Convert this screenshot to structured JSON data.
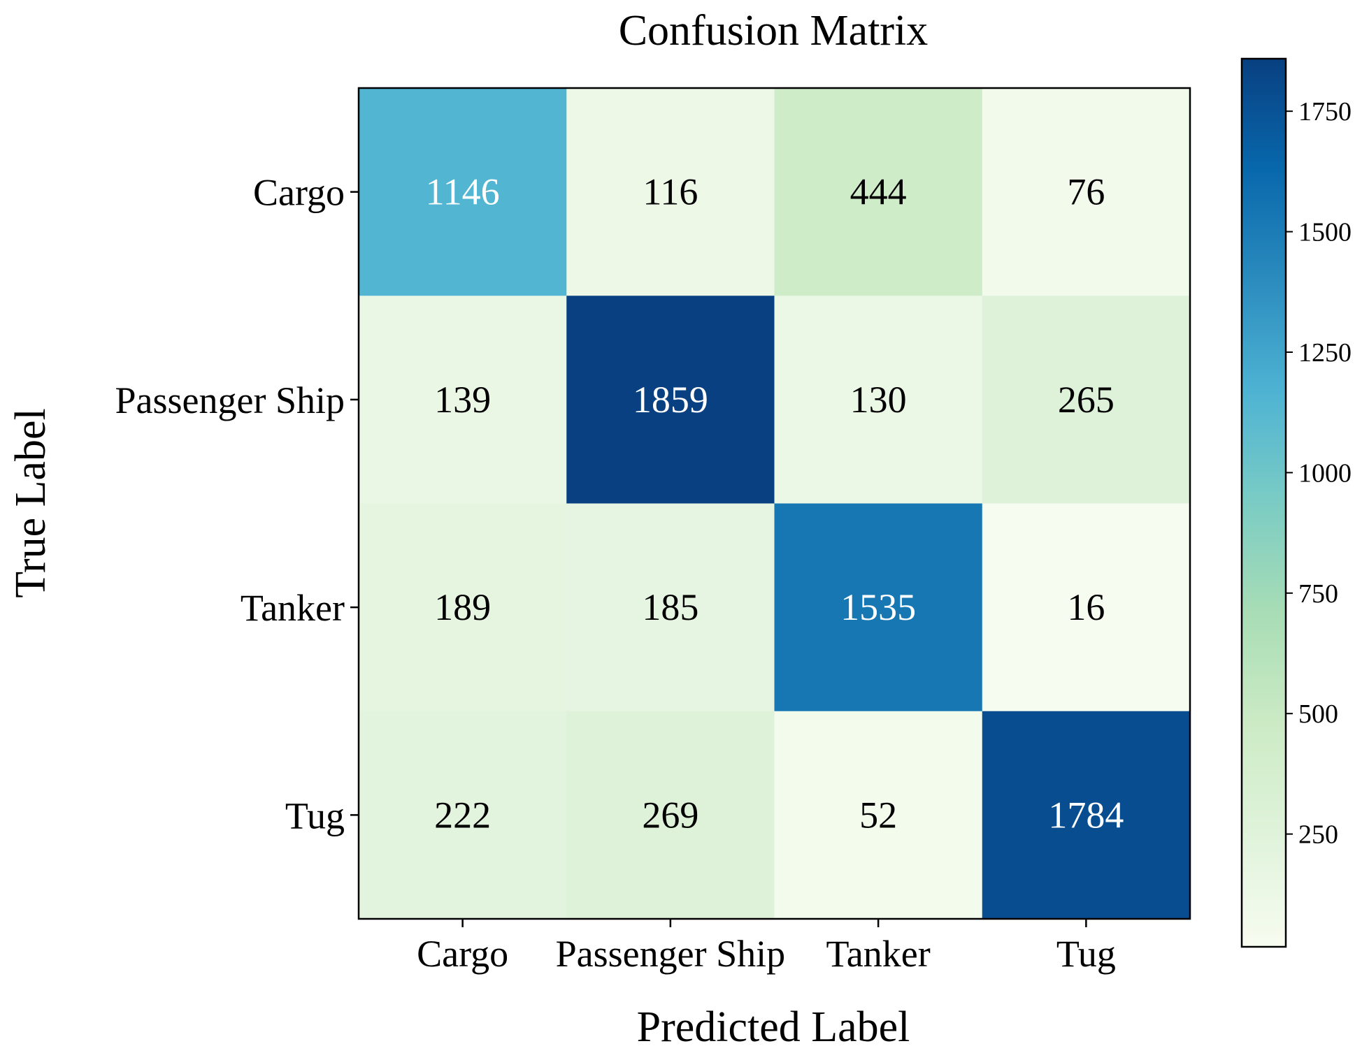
{
  "chart_data": {
    "type": "heatmap",
    "title": "Confusion Matrix",
    "xlabel": "Predicted Label",
    "ylabel": "True Label",
    "x_categories": [
      "Cargo",
      "Passenger Ship",
      "Tanker",
      "Tug"
    ],
    "y_categories": [
      "Cargo",
      "Passenger Ship",
      "Tanker",
      "Tug"
    ],
    "values": [
      [
        1146,
        116,
        444,
        76
      ],
      [
        139,
        1859,
        130,
        265
      ],
      [
        189,
        185,
        1535,
        16
      ],
      [
        222,
        269,
        52,
        1784
      ]
    ],
    "colormap": "GnBu",
    "color_range": [
      16,
      1859
    ],
    "colorbar_ticks": [
      250,
      500,
      750,
      1000,
      1250,
      1500,
      1750
    ],
    "colorbar_tick_labels": [
      "250",
      "500",
      "750",
      "1000",
      "1250",
      "1500",
      "1750"
    ],
    "colors": {
      "low": "#f7fcf0",
      "high": "#084081",
      "text_dark": "#000000",
      "text_light": "#ffffff"
    }
  }
}
